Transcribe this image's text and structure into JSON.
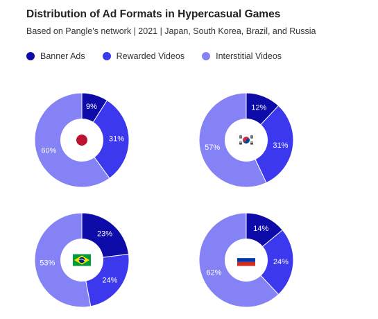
{
  "header": {
    "title": "Distribution of Ad Formats in Hypercasual Games",
    "subtitle": "Based on Pangle's network | 2021 | Japan, South Korea, Brazil, and Russia"
  },
  "colors": {
    "banner": "#0d0ca8",
    "rewarded": "#3b38ed",
    "interstitial": "#8482f5"
  },
  "legend": [
    {
      "label": "Banner Ads",
      "color": "#0d0ca8"
    },
    {
      "label": "Rewarded Videos",
      "color": "#3b38ed"
    },
    {
      "label": "Interstitial Videos",
      "color": "#8482f5"
    }
  ],
  "chart_data": [
    {
      "type": "pie",
      "country_flag": "japan-flag-icon",
      "categories": [
        "Banner Ads",
        "Rewarded Videos",
        "Interstitial Videos"
      ],
      "values": [
        9,
        31,
        60
      ],
      "labels": [
        "9%",
        "31%",
        "60%"
      ]
    },
    {
      "type": "pie",
      "country_flag": "south-korea-flag-icon",
      "categories": [
        "Banner Ads",
        "Rewarded Videos",
        "Interstitial Videos"
      ],
      "values": [
        12,
        31,
        57
      ],
      "labels": [
        "12%",
        "31%",
        "57%"
      ]
    },
    {
      "type": "pie",
      "country_flag": "brazil-flag-icon",
      "categories": [
        "Banner Ads",
        "Rewarded Videos",
        "Interstitial Videos"
      ],
      "values": [
        23,
        24,
        53
      ],
      "labels": [
        "23%",
        "24%",
        "53%"
      ]
    },
    {
      "type": "pie",
      "country_flag": "russia-flag-icon",
      "categories": [
        "Banner Ads",
        "Rewarded Videos",
        "Interstitial Videos"
      ],
      "values": [
        14,
        24,
        62
      ],
      "labels": [
        "14%",
        "24%",
        "62%"
      ]
    }
  ]
}
